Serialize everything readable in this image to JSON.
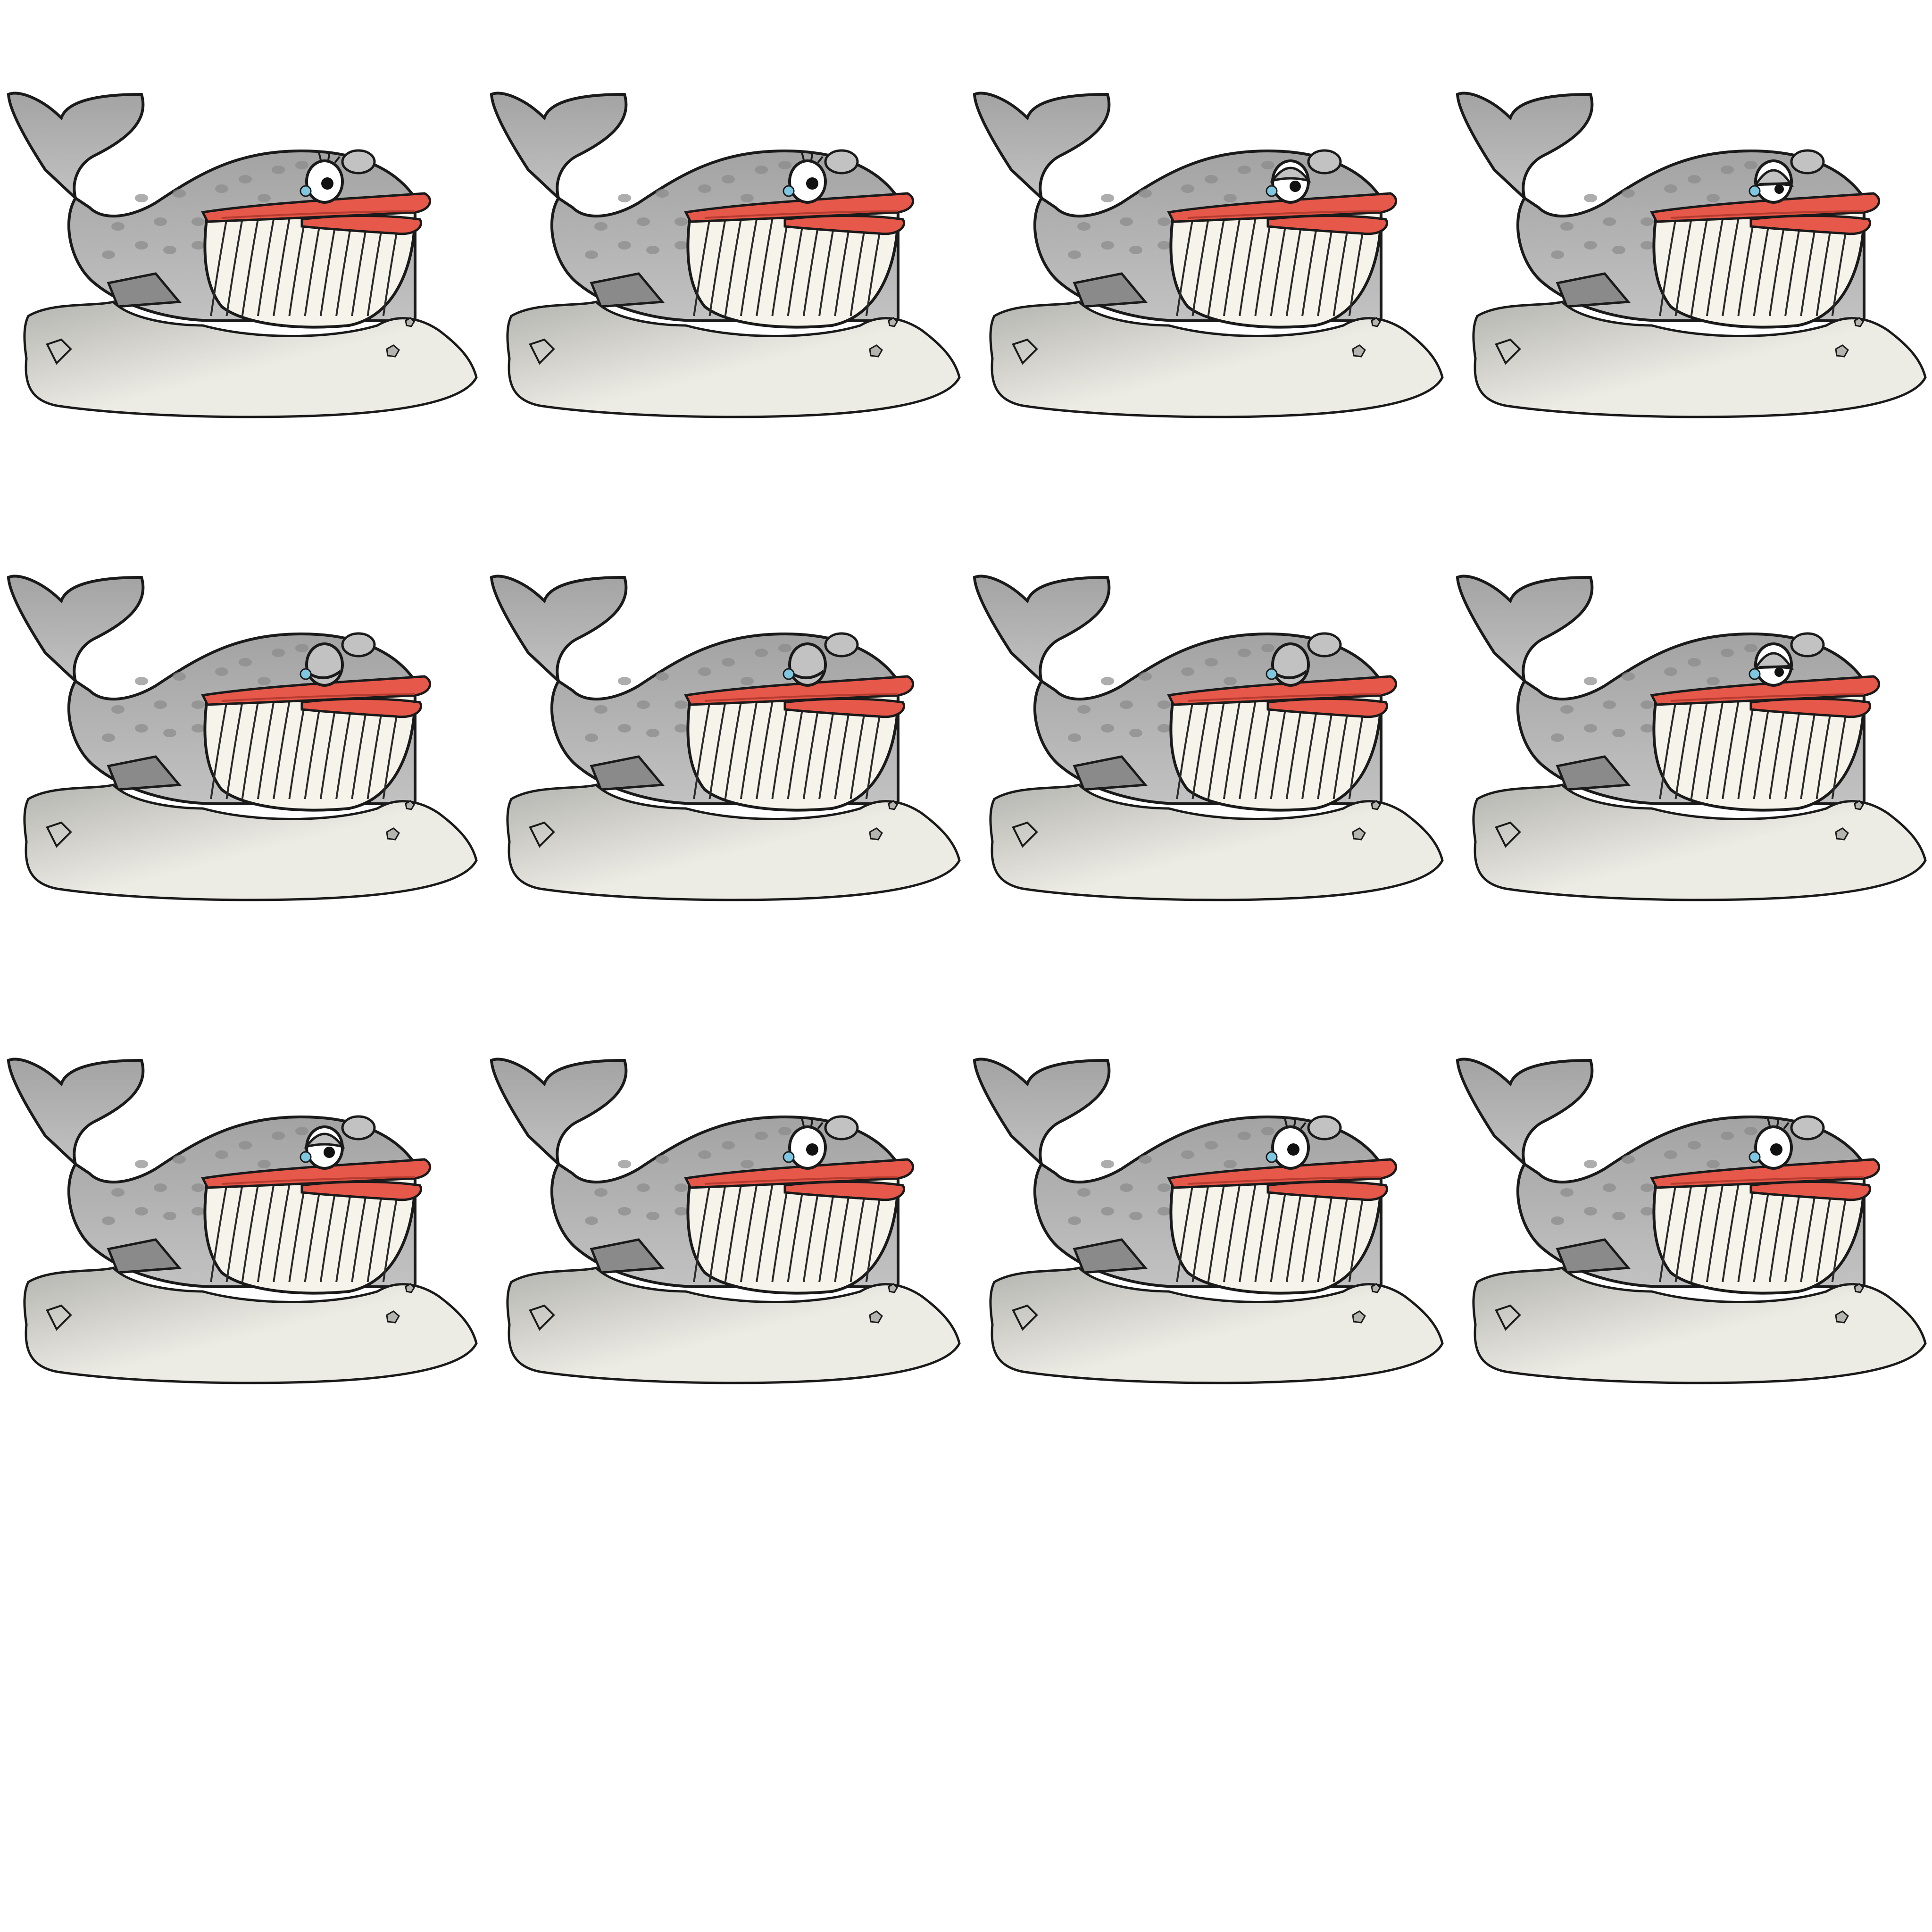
{
  "sprite_sheet": {
    "columns": 4,
    "rows": 4,
    "frames": [
      {
        "eye": "open-wide"
      },
      {
        "eye": "open"
      },
      {
        "eye": "half-closed"
      },
      {
        "eye": "squint"
      },
      {
        "eye": "closed"
      },
      {
        "eye": "closed"
      },
      {
        "eye": "closed"
      },
      {
        "eye": "squint"
      },
      {
        "eye": "half-closed"
      },
      {
        "eye": "open"
      },
      {
        "eye": "open-wide"
      },
      {
        "eye": "open-wide"
      }
    ],
    "colors": {
      "body": "#a3a3a3",
      "body_light": "#c2c2c2",
      "spots": "#8a8a8a",
      "outline": "#1a1a1a",
      "lips": "#e5584a",
      "lips_shadow": "#b83b30",
      "baleen": "#f6f4ea",
      "baleen_line": "#2a2a2a",
      "rock_light": "#ecebe4",
      "rock_shadow": "#b4b4b0",
      "eye_white": "#ffffff",
      "pupil": "#111111",
      "tear": "#7fc7e0",
      "background": "#ffffff"
    }
  }
}
